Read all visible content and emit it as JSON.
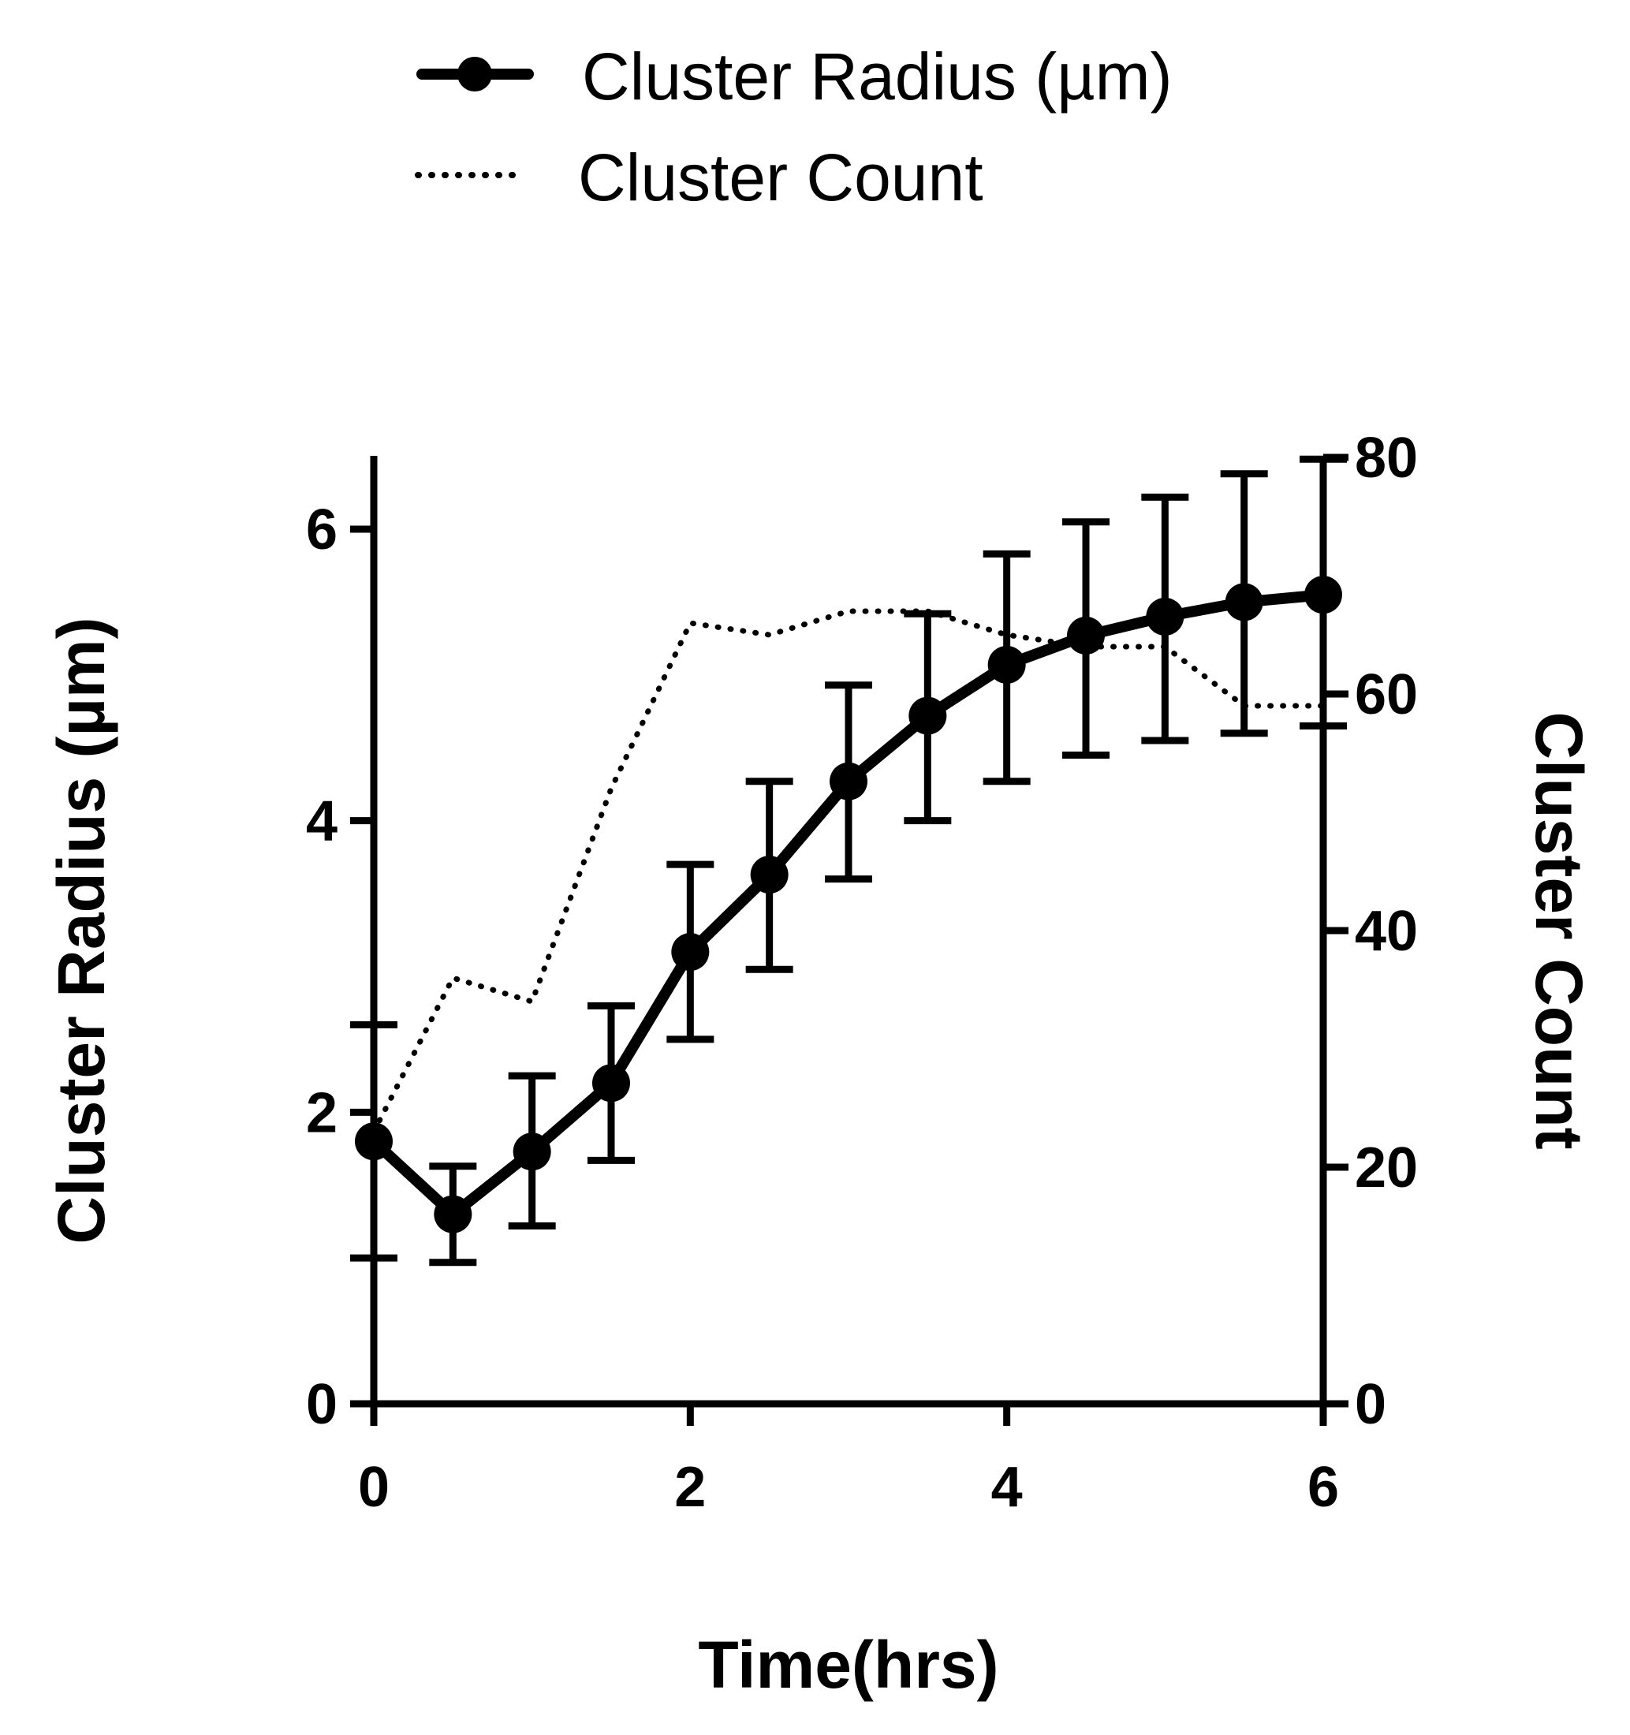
{
  "chart_data": {
    "type": "line",
    "xlabel": "Time(hrs)",
    "ylabel": "Cluster Radius (µm)",
    "y2label": "Cluster Count",
    "xlim": [
      0,
      6
    ],
    "ylim": [
      0,
      6.5
    ],
    "y2lim": [
      0,
      80
    ],
    "xticks": [
      "0",
      "2",
      "4",
      "6"
    ],
    "yticks": [
      "0",
      "2",
      "4",
      "6"
    ],
    "y2ticks": [
      "0",
      "20",
      "40",
      "60",
      "80"
    ],
    "legend_position": "top",
    "series": [
      {
        "name": "Cluster Radius (µm)",
        "axis": "left",
        "style": "solid-with-markers",
        "color": "#000000",
        "x": [
          0,
          0.5,
          1,
          1.5,
          2,
          2.5,
          3,
          3.5,
          4,
          4.5,
          5,
          5.5,
          6
        ],
        "y": [
          1.8,
          1.3,
          1.73,
          2.2,
          3.1,
          3.63,
          4.27,
          4.72,
          5.07,
          5.27,
          5.4,
          5.5,
          5.55
        ],
        "err_low": [
          1.0,
          0.97,
          1.22,
          1.67,
          2.5,
          2.98,
          3.6,
          4.0,
          4.27,
          4.45,
          4.55,
          4.6,
          4.65
        ],
        "err_high": [
          2.6,
          1.63,
          2.25,
          2.73,
          3.7,
          4.27,
          4.93,
          5.42,
          5.83,
          6.05,
          6.22,
          6.38,
          6.48
        ]
      },
      {
        "name": "Cluster Count",
        "axis": "right",
        "style": "dotted",
        "color": "#000000",
        "x": [
          0,
          0.5,
          1,
          1.5,
          2,
          2.5,
          3,
          3.5,
          4,
          4.5,
          5,
          5.5,
          6
        ],
        "y": [
          23,
          36,
          34,
          52,
          66,
          65,
          67,
          67,
          65,
          64,
          64,
          59,
          59
        ]
      }
    ]
  }
}
